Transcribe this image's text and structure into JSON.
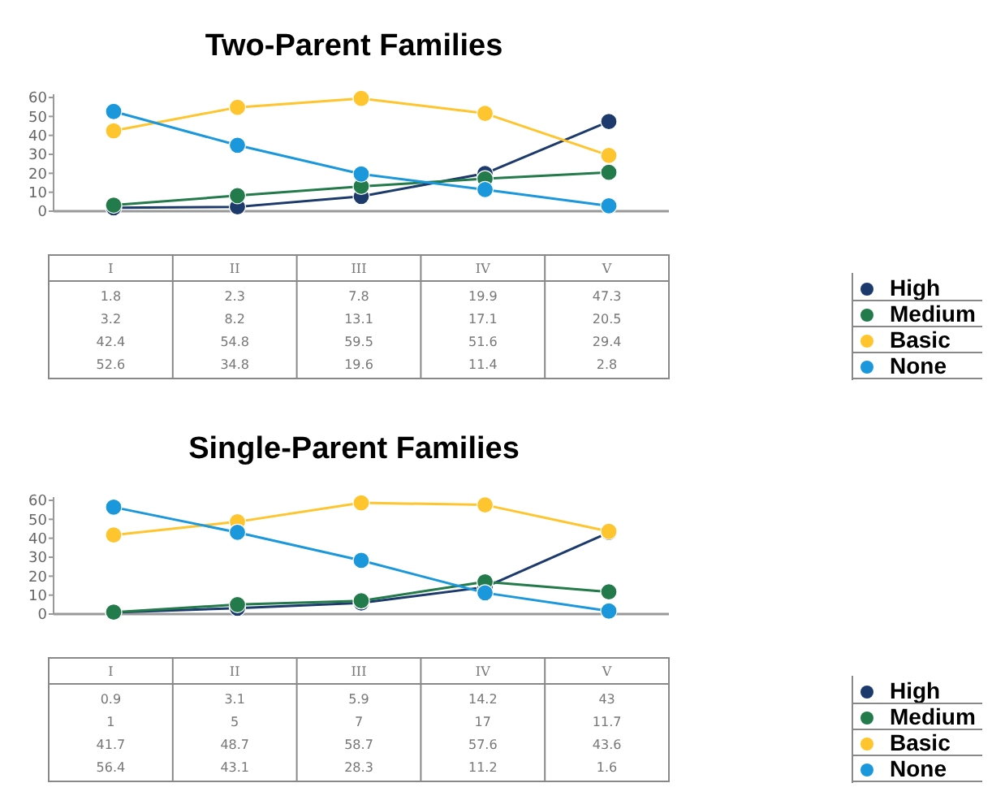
{
  "chart_data": [
    {
      "type": "line",
      "title": "Two-Parent Families",
      "categories": [
        "I",
        "II",
        "III",
        "IV",
        "V"
      ],
      "ylim": [
        0,
        60
      ],
      "yticks": [
        0,
        10,
        20,
        30,
        40,
        50,
        60
      ],
      "grid": false,
      "legend": "right",
      "marker": "circle",
      "line_style": "solid",
      "data_labels": true,
      "series": [
        {
          "name": "High",
          "color": "#1c3a6b",
          "values": [
            1.8,
            2.3,
            7.8,
            19.9,
            47.3
          ]
        },
        {
          "name": "Medium",
          "color": "#237a4a",
          "values": [
            3.2,
            8.2,
            13.1,
            17.1,
            20.5
          ]
        },
        {
          "name": "Basic",
          "color": "#ffc52e",
          "values": [
            42.4,
            54.8,
            59.5,
            51.6,
            29.4
          ]
        },
        {
          "name": "None",
          "color": "#1b98dc",
          "values": [
            52.6,
            34.8,
            19.6,
            11.4,
            2.8
          ]
        }
      ]
    },
    {
      "type": "line",
      "title": "Single-Parent Families",
      "categories": [
        "I",
        "II",
        "III",
        "IV",
        "V"
      ],
      "ylim": [
        0,
        60
      ],
      "yticks": [
        0,
        10,
        20,
        30,
        40,
        50,
        60
      ],
      "grid": false,
      "legend": "right",
      "marker": "circle",
      "line_style": "solid",
      "data_labels": true,
      "series": [
        {
          "name": "High",
          "color": "#1c3a6b",
          "values": [
            0.9,
            3.1,
            5.9,
            14.2,
            43
          ]
        },
        {
          "name": "Medium",
          "color": "#237a4a",
          "values": [
            1,
            5,
            7,
            17,
            11.7
          ]
        },
        {
          "name": "Basic",
          "color": "#ffc52e",
          "values": [
            41.7,
            48.7,
            58.7,
            57.6,
            43.6
          ]
        },
        {
          "name": "None",
          "color": "#1b98dc",
          "values": [
            56.4,
            43.1,
            28.3,
            11.2,
            1.6
          ]
        }
      ]
    }
  ]
}
